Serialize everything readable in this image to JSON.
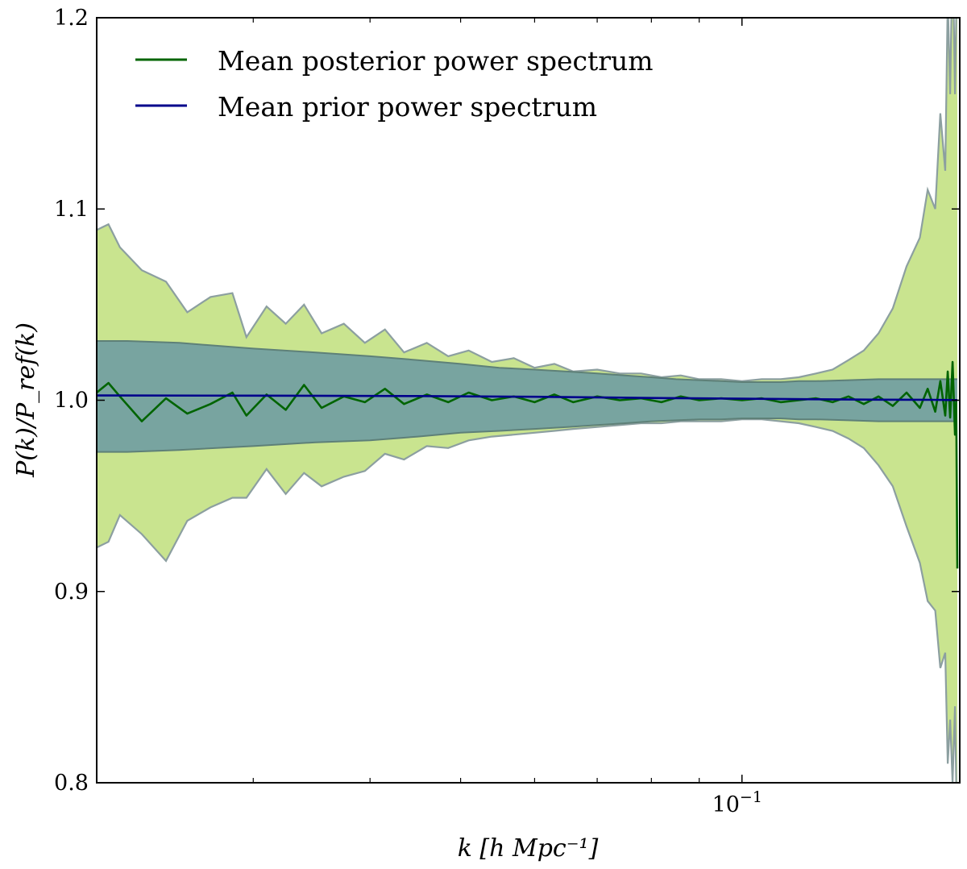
{
  "chart_data": {
    "type": "line",
    "title": "",
    "xlabel": "k [h Mpc⁻¹]",
    "ylabel": "P(k)/P_ref(k)",
    "xscale": "log",
    "xlim": [
      0.0204,
      0.171
    ],
    "ylim": [
      0.8,
      1.2
    ],
    "grid": false,
    "legend_position": "top-left",
    "x_ticks": [
      {
        "value": 0.1,
        "label": "10",
        "exponent": "−1"
      }
    ],
    "x_minor_ticks": [
      0.03,
      0.04,
      0.05,
      0.06,
      0.07,
      0.08,
      0.09
    ],
    "y_ticks": [
      {
        "value": 0.8,
        "label": "0.8"
      },
      {
        "value": 0.9,
        "label": "0.9"
      },
      {
        "value": 1.0,
        "label": "1.0"
      },
      {
        "value": 1.1,
        "label": "1.1"
      },
      {
        "value": 1.2,
        "label": "1.2"
      }
    ],
    "colors": {
      "posterior_line": "#006400",
      "prior_line": "#00008b",
      "posterior_band": "#c9e48f",
      "posterior_band_edge": "#8c9fa0",
      "prior_band": "#6f9ca2",
      "prior_band_edge": "#5e8078"
    },
    "series": [
      {
        "name": "Mean posterior power spectrum",
        "x": [
          0.0204,
          0.021,
          0.0216,
          0.0228,
          0.0242,
          0.0255,
          0.027,
          0.0285,
          0.0295,
          0.031,
          0.0325,
          0.034,
          0.0355,
          0.0375,
          0.0395,
          0.0415,
          0.0435,
          0.046,
          0.0485,
          0.051,
          0.054,
          0.057,
          0.06,
          0.063,
          0.066,
          0.07,
          0.074,
          0.078,
          0.082,
          0.086,
          0.09,
          0.095,
          0.1,
          0.105,
          0.11,
          0.115,
          0.12,
          0.125,
          0.13,
          0.135,
          0.14,
          0.145,
          0.15,
          0.155,
          0.158,
          0.161,
          0.163,
          0.165,
          0.166,
          0.167,
          0.168,
          0.169,
          0.1695,
          0.17
        ],
        "y": [
          1.004,
          1.009,
          1.002,
          0.989,
          1.001,
          0.993,
          0.998,
          1.004,
          0.992,
          1.003,
          0.995,
          1.008,
          0.996,
          1.002,
          0.999,
          1.006,
          0.998,
          1.003,
          0.999,
          1.004,
          1.0,
          1.002,
          0.999,
          1.003,
          0.999,
          1.002,
          1.0,
          1.001,
          0.999,
          1.002,
          1.0,
          1.001,
          1.0,
          1.001,
          0.999,
          1.0,
          1.001,
          0.999,
          1.002,
          0.998,
          1.002,
          0.997,
          1.004,
          0.996,
          1.006,
          0.994,
          1.01,
          0.992,
          1.015,
          0.991,
          1.02,
          0.982,
          1.0,
          0.912
        ]
      },
      {
        "name": "Mean prior power spectrum",
        "x": [
          0.0204,
          0.03,
          0.045,
          0.06,
          0.08,
          0.1,
          0.12,
          0.14,
          0.16,
          0.17
        ],
        "y": [
          1.0025,
          1.0024,
          1.0022,
          1.0018,
          1.0012,
          1.0008,
          1.0005,
          1.0003,
          1.0002,
          1.0001
        ]
      }
    ],
    "posterior_band": {
      "x": [
        0.0204,
        0.021,
        0.0216,
        0.0228,
        0.0242,
        0.0255,
        0.027,
        0.0285,
        0.0295,
        0.031,
        0.0325,
        0.034,
        0.0355,
        0.0375,
        0.0395,
        0.0415,
        0.0435,
        0.046,
        0.0485,
        0.051,
        0.054,
        0.057,
        0.06,
        0.063,
        0.066,
        0.07,
        0.074,
        0.078,
        0.082,
        0.086,
        0.09,
        0.095,
        0.1,
        0.105,
        0.11,
        0.115,
        0.12,
        0.125,
        0.13,
        0.135,
        0.14,
        0.145,
        0.15,
        0.155,
        0.158,
        0.161,
        0.163,
        0.165,
        0.166,
        0.167,
        0.168,
        0.169,
        0.1695,
        0.17
      ],
      "upper": [
        1.089,
        1.092,
        1.08,
        1.068,
        1.062,
        1.046,
        1.054,
        1.056,
        1.033,
        1.049,
        1.04,
        1.05,
        1.035,
        1.04,
        1.03,
        1.037,
        1.025,
        1.03,
        1.023,
        1.026,
        1.02,
        1.022,
        1.017,
        1.019,
        1.015,
        1.016,
        1.014,
        1.014,
        1.012,
        1.013,
        1.011,
        1.011,
        1.01,
        1.011,
        1.011,
        1.012,
        1.014,
        1.016,
        1.021,
        1.026,
        1.035,
        1.048,
        1.07,
        1.085,
        1.11,
        1.1,
        1.15,
        1.12,
        1.21,
        1.16,
        1.24,
        1.16,
        1.2,
        1.2
      ],
      "lower": [
        0.923,
        0.926,
        0.94,
        0.93,
        0.916,
        0.937,
        0.944,
        0.949,
        0.949,
        0.964,
        0.951,
        0.962,
        0.955,
        0.96,
        0.963,
        0.972,
        0.969,
        0.976,
        0.975,
        0.979,
        0.981,
        0.982,
        0.983,
        0.984,
        0.985,
        0.986,
        0.987,
        0.988,
        0.988,
        0.989,
        0.989,
        0.989,
        0.99,
        0.99,
        0.989,
        0.988,
        0.986,
        0.984,
        0.98,
        0.975,
        0.966,
        0.955,
        0.934,
        0.915,
        0.895,
        0.89,
        0.86,
        0.868,
        0.81,
        0.833,
        0.8,
        0.84,
        0.8,
        0.8
      ]
    },
    "prior_band": {
      "x": [
        0.0204,
        0.022,
        0.025,
        0.03,
        0.035,
        0.04,
        0.045,
        0.05,
        0.055,
        0.06,
        0.065,
        0.07,
        0.075,
        0.08,
        0.085,
        0.09,
        0.095,
        0.1,
        0.105,
        0.11,
        0.115,
        0.12,
        0.13,
        0.14,
        0.15,
        0.16,
        0.17
      ],
      "upper": [
        1.031,
        1.031,
        1.03,
        1.027,
        1.025,
        1.023,
        1.021,
        1.019,
        1.017,
        1.016,
        1.015,
        1.014,
        1.013,
        1.012,
        1.011,
        1.0105,
        1.01,
        1.0095,
        1.0095,
        1.0095,
        1.01,
        1.01,
        1.0105,
        1.011,
        1.011,
        1.011,
        1.011
      ],
      "lower": [
        0.973,
        0.973,
        0.974,
        0.976,
        0.978,
        0.979,
        0.981,
        0.983,
        0.984,
        0.985,
        0.986,
        0.987,
        0.988,
        0.989,
        0.9895,
        0.99,
        0.99,
        0.9905,
        0.9905,
        0.9905,
        0.99,
        0.99,
        0.9895,
        0.989,
        0.989,
        0.989,
        0.989
      ]
    }
  }
}
